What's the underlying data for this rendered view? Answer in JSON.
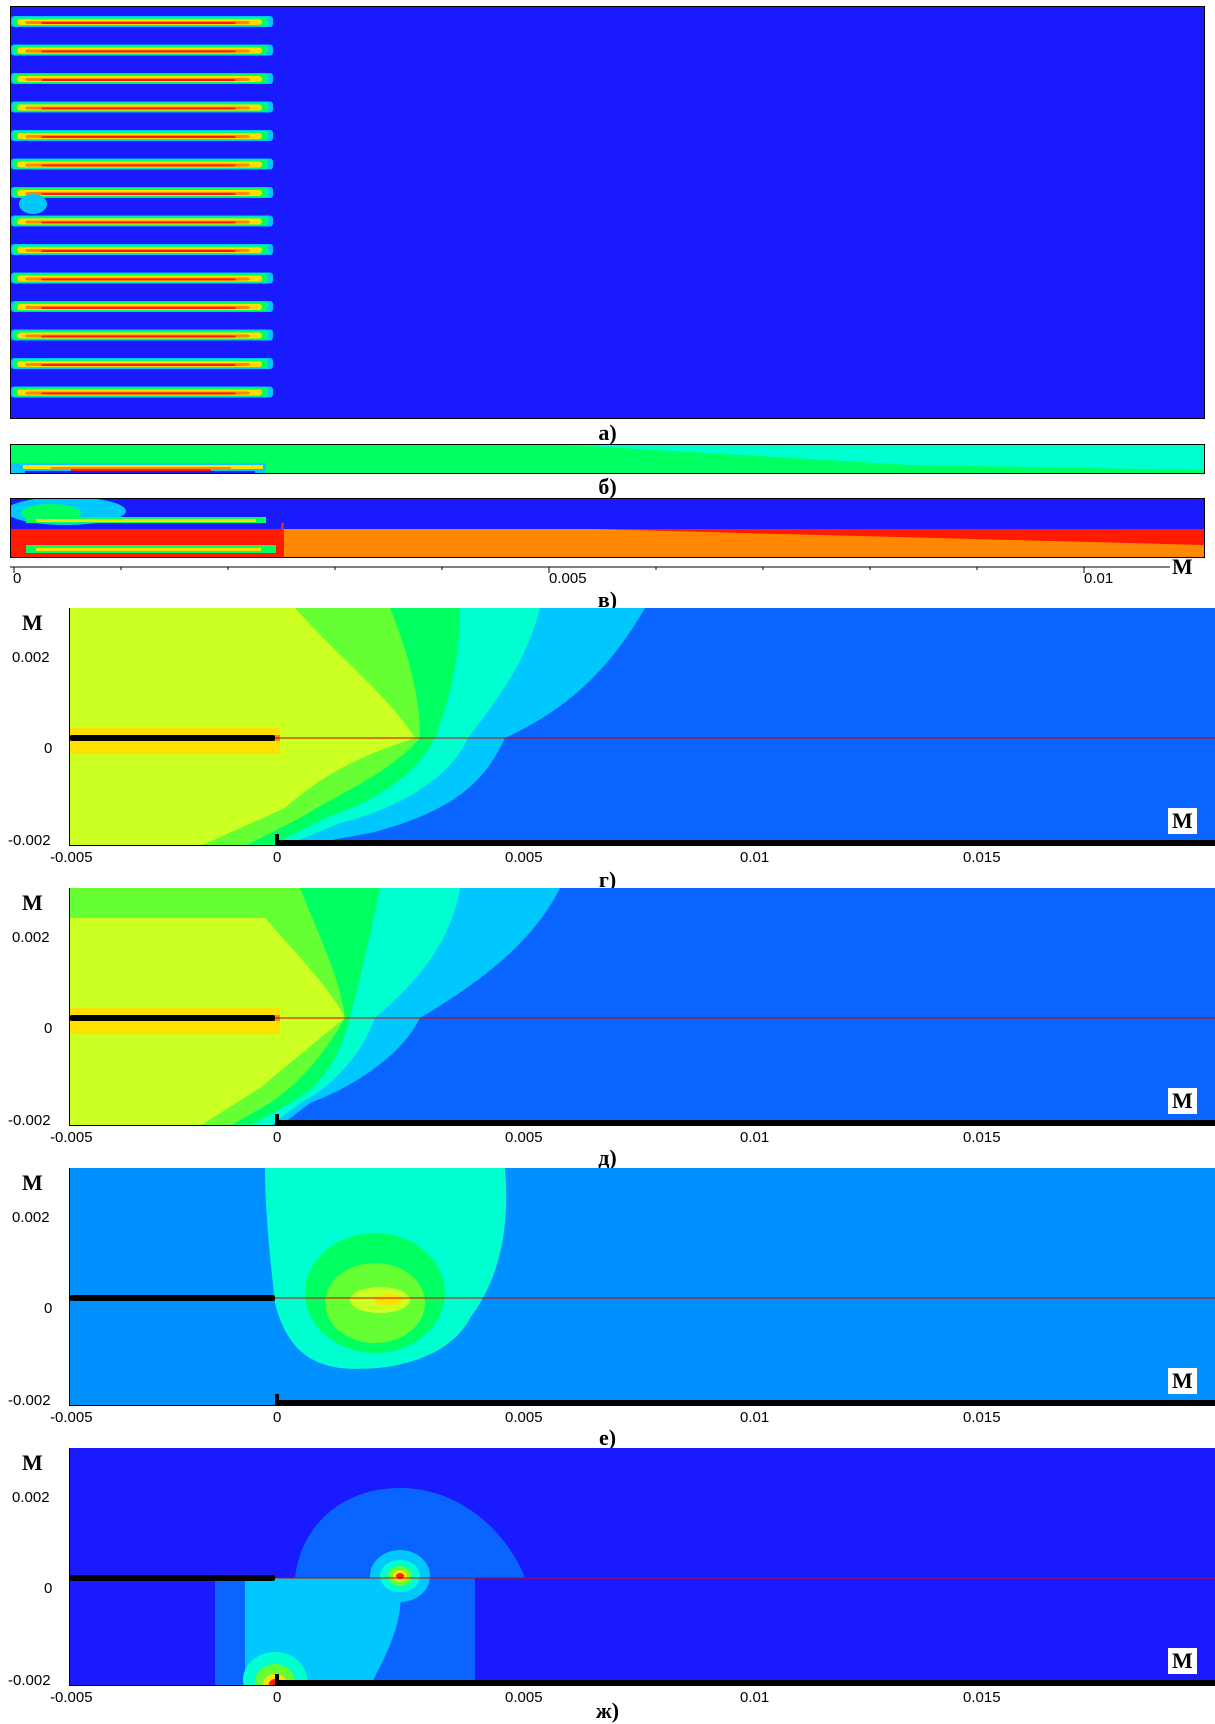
{
  "captions": [
    "а)",
    "б)",
    "в)",
    "г)",
    "д)",
    "е)",
    "ж)"
  ],
  "ruler": {
    "ticks": [
      "0",
      "0.005",
      "0.01"
    ],
    "unit": "М"
  },
  "panels": {
    "g": {
      "y_unit": "М",
      "x_unit": "М",
      "y_ticks": [
        "0.002",
        "0",
        "-0.002"
      ],
      "x_ticks": [
        "-0.005",
        "0",
        "0.005",
        "0.01",
        "0.015"
      ]
    },
    "d": {
      "y_unit": "М",
      "x_unit": "М",
      "y_ticks": [
        "0.002",
        "0",
        "-0.002"
      ],
      "x_ticks": [
        "-0.005",
        "0",
        "0.005",
        "0.01",
        "0.015"
      ]
    },
    "e": {
      "y_unit": "М",
      "x_unit": "М",
      "y_ticks": [
        "0.002",
        "0",
        "-0.002"
      ],
      "x_ticks": [
        "-0.005",
        "0",
        "0.005",
        "0.01",
        "0.015"
      ]
    },
    "zh": {
      "y_unit": "М",
      "x_unit": "М",
      "y_ticks": [
        "0.002",
        "0",
        "-0.002"
      ],
      "x_ticks": [
        "-0.005",
        "0",
        "0.005",
        "0.01",
        "0.015"
      ]
    }
  },
  "colors": {
    "deep_blue": "#1a1aff",
    "blue": "#0a64ff",
    "mid_blue": "#0090ff",
    "light_blue": "#00c8ff",
    "cyan": "#00ffd0",
    "green": "#00ff60",
    "light_green": "#66ff33",
    "yellow_green": "#ccff22",
    "yellow": "#ffe000",
    "orange": "#ff8800",
    "red": "#ff1a00"
  }
}
